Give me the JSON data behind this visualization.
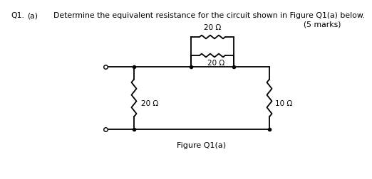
{
  "title_q": "Q1.",
  "title_a": "(a)",
  "title_body": "Determine the equivalent resistance for the circuit shown in Figure Q1(a) below.",
  "title_marks": "(5 marks)",
  "figure_label": "Figure Q1(a)",
  "label_20_top": "20 Ω",
  "label_20_mid": "20 Ω",
  "label_20_left": "20 Ω",
  "label_10_right": "10 Ω",
  "background_color": "#ffffff",
  "line_color": "#000000",
  "text_color": "#000000",
  "line_width": 1.3,
  "font_size_title": 7.8,
  "font_size_label": 7.5,
  "font_size_fig": 8.0
}
